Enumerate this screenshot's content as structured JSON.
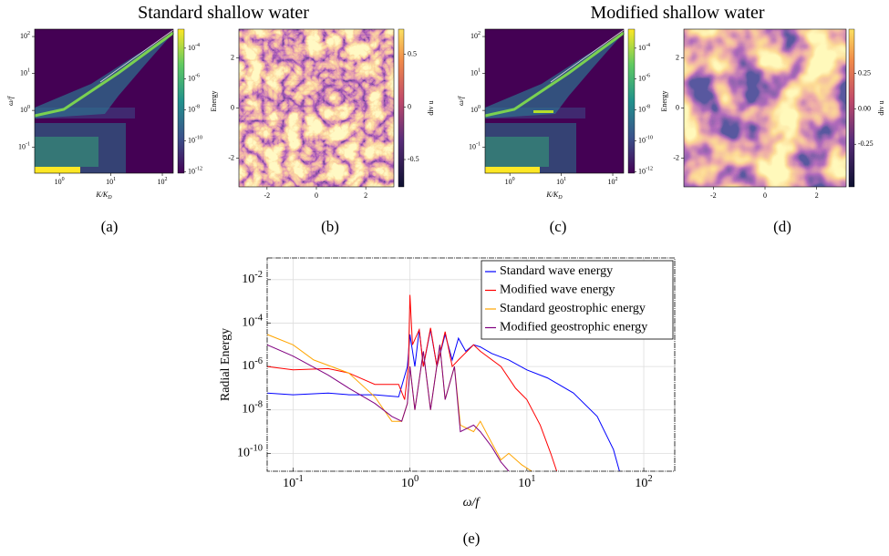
{
  "chart_data": [
    {
      "type": "heatmap",
      "title": "Standard shallow water",
      "caption": "(a)",
      "xlabel": "K/K_D",
      "ylabel": "ω/f",
      "colorbar_label": "Energy",
      "log_x": true,
      "log_y": true,
      "log_c": true,
      "xlim": [
        0.33,
        163
      ],
      "ylim": [
        0.02,
        158
      ],
      "xticks": [
        {
          "value": 1,
          "label": "10^0"
        },
        {
          "value": 10,
          "label": "10^1"
        },
        {
          "value": 100,
          "label": "10^2"
        }
      ],
      "yticks": [
        {
          "value": 0.1,
          "label": "10^-1"
        },
        {
          "value": 1,
          "label": "10^0"
        },
        {
          "value": 10,
          "label": "10^1"
        },
        {
          "value": 100,
          "label": "10^2"
        }
      ],
      "clim": [
        7.9e-13,
        0.0017
      ],
      "cticks": [
        {
          "value": 0.0001,
          "label": "10^-4"
        },
        {
          "value": 1e-06,
          "label": "10^-6"
        },
        {
          "value": 1e-08,
          "label": "10^-8"
        },
        {
          "value": 1e-10,
          "label": "10^-10"
        },
        {
          "value": 1e-12,
          "label": "10^-12"
        }
      ]
    },
    {
      "type": "heatmap",
      "caption": "(b)",
      "colorbar_label": "div u",
      "xlim": [
        -3.14,
        3.14
      ],
      "ylim": [
        -3.14,
        3.14
      ],
      "xticks": [
        -2,
        0,
        2
      ],
      "yticks": [
        -2,
        0,
        2
      ],
      "clim": [
        -0.76,
        0.74
      ],
      "cticks": [
        0.5,
        0,
        -0.5
      ]
    },
    {
      "type": "heatmap",
      "title": "Modified shallow water",
      "caption": "(c)",
      "xlabel": "K/K_D",
      "ylabel": "ω/f",
      "colorbar_label": "Energy",
      "log_x": true,
      "log_y": true,
      "log_c": true,
      "xlim": [
        0.33,
        163
      ],
      "ylim": [
        0.02,
        158
      ],
      "xticks": [
        {
          "value": 1,
          "label": "10^0"
        },
        {
          "value": 10,
          "label": "10^1"
        },
        {
          "value": 100,
          "label": "10^2"
        }
      ],
      "yticks": [
        {
          "value": 0.1,
          "label": "10^-1"
        },
        {
          "value": 1,
          "label": "10^0"
        },
        {
          "value": 10,
          "label": "10^1"
        },
        {
          "value": 100,
          "label": "10^2"
        }
      ],
      "clim": [
        7.9e-13,
        0.0017
      ],
      "cticks": [
        {
          "value": 0.0001,
          "label": "10^-4"
        },
        {
          "value": 1e-06,
          "label": "10^-6"
        },
        {
          "value": 1e-08,
          "label": "10^-8"
        },
        {
          "value": 1e-10,
          "label": "10^-10"
        },
        {
          "value": 1e-12,
          "label": "10^-12"
        }
      ]
    },
    {
      "type": "heatmap",
      "caption": "(d)",
      "colorbar_label": "div u",
      "xlim": [
        -3.14,
        3.14
      ],
      "ylim": [
        -3.14,
        3.14
      ],
      "xticks": [
        -2,
        0,
        2
      ],
      "yticks": [
        -2,
        0,
        2
      ],
      "clim": [
        -0.55,
        0.56
      ],
      "cticks": [
        0.25,
        {
          "value": 0,
          "label": "0.00"
        },
        -0.25
      ]
    },
    {
      "type": "line",
      "caption": "(e)",
      "xlabel": "ω/f",
      "ylabel": "Radial Energy",
      "log_x": true,
      "log_y": true,
      "grid": true,
      "legend": "upper right",
      "xlim": [
        0.06,
        184
      ],
      "ylim": [
        1.5e-11,
        0.1
      ],
      "xticks": [
        {
          "value": 0.1,
          "label": "10^-1"
        },
        {
          "value": 1,
          "label": "10^0"
        },
        {
          "value": 10,
          "label": "10^1"
        },
        {
          "value": 100,
          "label": "10^2"
        }
      ],
      "yticks": [
        {
          "value": 1e-10,
          "label": "10^-10"
        },
        {
          "value": 1e-08,
          "label": "10^-8"
        },
        {
          "value": 1e-06,
          "label": "10^-6"
        },
        {
          "value": 0.0001,
          "label": "10^-4"
        },
        {
          "value": 0.01,
          "label": "10^-2"
        }
      ],
      "series": [
        {
          "name": "Standard wave energy",
          "color": "#0000ff",
          "x": [
            0.06,
            0.1,
            0.2,
            0.3,
            0.5,
            0.8,
            0.95,
            1.0,
            1.1,
            1.2,
            1.3,
            1.5,
            1.7,
            2,
            2.3,
            2.6,
            3,
            3.5,
            4,
            5,
            7,
            10,
            15,
            25,
            40,
            55,
            62
          ],
          "values": [
            6e-08,
            5e-08,
            6e-08,
            5e-08,
            5e-08,
            4e-08,
            1e-06,
            3e-05,
            1e-06,
            5e-05,
            1e-06,
            5e-05,
            1e-06,
            3e-05,
            2e-06,
            2e-05,
            5e-06,
            1e-05,
            8e-06,
            4e-06,
            2e-06,
            7e-07,
            3e-07,
            6e-08,
            5e-09,
            1.5e-10,
            1.5e-11
          ]
        },
        {
          "name": "Modified wave energy",
          "color": "#ff0000",
          "x": [
            0.06,
            0.1,
            0.2,
            0.3,
            0.5,
            0.8,
            0.9,
            0.97,
            1.0,
            1.05,
            1.2,
            1.3,
            1.5,
            1.7,
            2,
            2.3,
            2.6,
            3.5,
            4,
            6,
            8,
            10,
            13,
            16,
            18
          ],
          "values": [
            1e-06,
            7e-07,
            8e-07,
            5e-07,
            1.5e-07,
            1.5e-07,
            3e-08,
            1e-06,
            0.002,
            1e-05,
            5e-05,
            1e-06,
            6e-05,
            1e-06,
            4e-05,
            1e-06,
            2e-06,
            1e-05,
            5e-06,
            1e-06,
            1e-07,
            3e-08,
            2e-09,
            1e-10,
            1.5e-11
          ]
        },
        {
          "name": "Standard geostrophic energy",
          "color": "#ffa500",
          "x": [
            0.06,
            0.1,
            0.15,
            0.3,
            0.5,
            0.7,
            0.85,
            0.95,
            1.0,
            1.1,
            1.3,
            1.5,
            1.8,
            2,
            2.4,
            2.7,
            3.5,
            4,
            5,
            6,
            7,
            9,
            11
          ],
          "values": [
            3e-05,
            1e-05,
            2e-06,
            5e-07,
            4e-08,
            3e-09,
            3e-09,
            2e-08,
            1e-06,
            1e-08,
            5e-06,
            1e-08,
            1e-05,
            3e-08,
            1e-06,
            2e-09,
            1e-09,
            3e-09,
            3e-10,
            5e-11,
            1e-10,
            3e-11,
            1.5e-11
          ]
        },
        {
          "name": "Modified geostrophic energy",
          "color": "#800080",
          "x": [
            0.06,
            0.1,
            0.2,
            0.3,
            0.5,
            0.7,
            0.85,
            0.95,
            1.0,
            1.1,
            1.3,
            1.5,
            1.8,
            2,
            2.4,
            2.7,
            3.5,
            4,
            5,
            6,
            7
          ],
          "values": [
            1e-05,
            3e-06,
            4e-07,
            1e-07,
            2e-08,
            5e-09,
            3e-09,
            2e-08,
            1e-06,
            1e-08,
            5e-06,
            1e-08,
            1e-05,
            3e-08,
            1e-06,
            1e-09,
            2e-09,
            1e-09,
            2e-10,
            4e-11,
            1.5e-11
          ]
        }
      ]
    }
  ]
}
